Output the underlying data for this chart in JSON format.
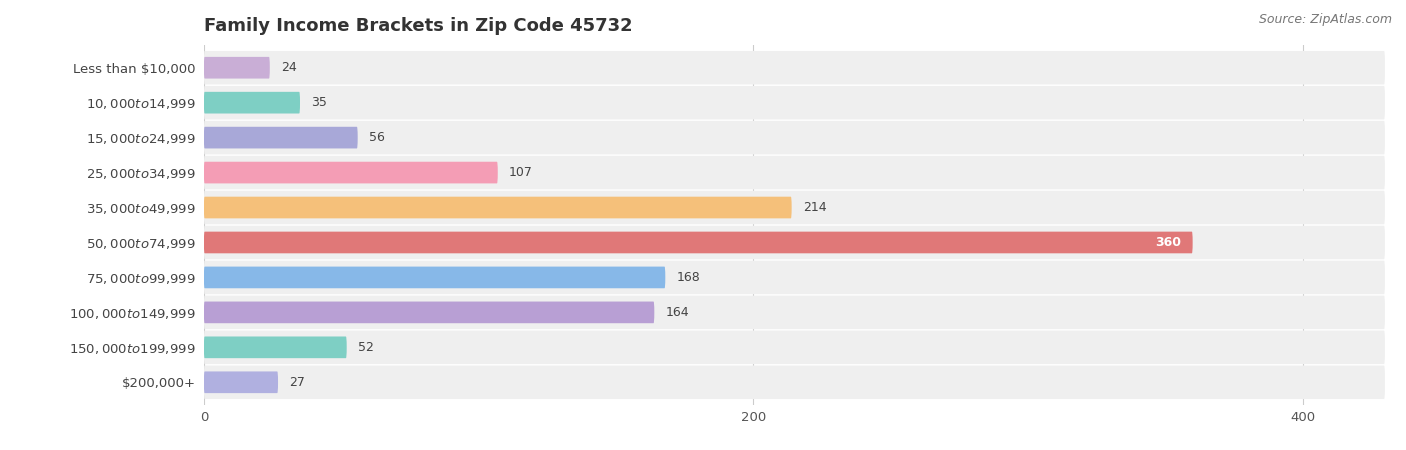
{
  "title": "Family Income Brackets in Zip Code 45732",
  "source": "Source: ZipAtlas.com",
  "categories": [
    "Less than $10,000",
    "$10,000 to $14,999",
    "$15,000 to $24,999",
    "$25,000 to $34,999",
    "$35,000 to $49,999",
    "$50,000 to $74,999",
    "$75,000 to $99,999",
    "$100,000 to $149,999",
    "$150,000 to $199,999",
    "$200,000+"
  ],
  "values": [
    24,
    35,
    56,
    107,
    214,
    360,
    168,
    164,
    52,
    27
  ],
  "bar_colors": [
    "#c9aed6",
    "#7ecfc4",
    "#a8a8d8",
    "#f49db5",
    "#f5c07a",
    "#e07878",
    "#87b8e8",
    "#b89fd4",
    "#7ecfc4",
    "#b0b0e0"
  ],
  "xlim": [
    0,
    430
  ],
  "xticks": [
    0,
    200,
    400
  ],
  "background_color": "#ffffff",
  "row_bg_color": "#efefef",
  "title_fontsize": 13,
  "label_fontsize": 9.5,
  "value_fontsize": 9,
  "source_fontsize": 9
}
